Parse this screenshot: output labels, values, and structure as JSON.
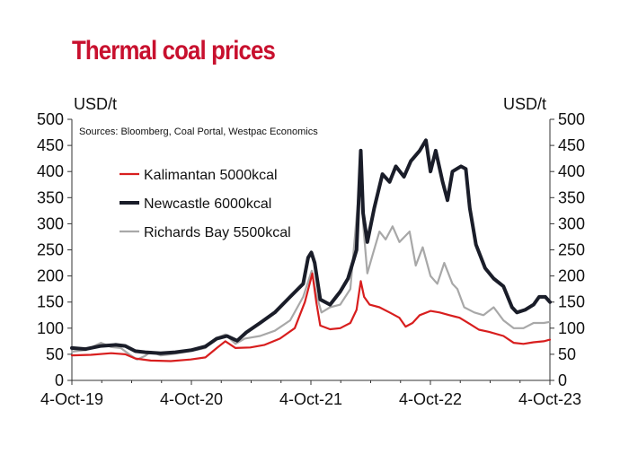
{
  "chart_data": {
    "type": "line",
    "title": "Thermal coal prices",
    "ylabel_left": "USD/t",
    "ylabel_right": "USD/t",
    "source": "Sources: Bloomberg, Coal Portal, Westpac Economics",
    "ylim": [
      0,
      500
    ],
    "yticks": [
      0,
      50,
      100,
      150,
      200,
      250,
      300,
      350,
      400,
      450,
      500
    ],
    "xlim": [
      "2019-10-04",
      "2023-10-04"
    ],
    "xticks": [
      "4-Oct-19",
      "4-Oct-20",
      "4-Oct-21",
      "4-Oct-22",
      "4-Oct-23"
    ],
    "grid": false,
    "legend": "upper-left",
    "series": [
      {
        "name": "Kalimantan 5000kcal",
        "color": "#d81e1e",
        "width": 2.2,
        "points": [
          [
            "2019-10-04",
            48
          ],
          [
            "2019-12-01",
            49
          ],
          [
            "2020-02-01",
            52
          ],
          [
            "2020-03-15",
            50
          ],
          [
            "2020-04-15",
            42
          ],
          [
            "2020-06-01",
            38
          ],
          [
            "2020-08-01",
            37
          ],
          [
            "2020-10-01",
            40
          ],
          [
            "2020-11-15",
            44
          ],
          [
            "2020-12-20",
            62
          ],
          [
            "2021-01-15",
            75
          ],
          [
            "2021-02-15",
            62
          ],
          [
            "2021-04-01",
            63
          ],
          [
            "2021-05-15",
            68
          ],
          [
            "2021-07-01",
            80
          ],
          [
            "2021-08-15",
            100
          ],
          [
            "2021-09-15",
            150
          ],
          [
            "2021-10-08",
            205
          ],
          [
            "2021-10-20",
            150
          ],
          [
            "2021-11-01",
            105
          ],
          [
            "2021-12-01",
            98
          ],
          [
            "2022-01-01",
            100
          ],
          [
            "2022-02-01",
            110
          ],
          [
            "2022-02-20",
            135
          ],
          [
            "2022-03-05",
            190
          ],
          [
            "2022-03-15",
            160
          ],
          [
            "2022-04-01",
            145
          ],
          [
            "2022-05-01",
            140
          ],
          [
            "2022-06-01",
            130
          ],
          [
            "2022-07-01",
            120
          ],
          [
            "2022-07-20",
            103
          ],
          [
            "2022-08-10",
            110
          ],
          [
            "2022-09-01",
            125
          ],
          [
            "2022-10-04",
            133
          ],
          [
            "2022-11-01",
            130
          ],
          [
            "2022-12-01",
            125
          ],
          [
            "2023-01-01",
            120
          ],
          [
            "2023-02-01",
            108
          ],
          [
            "2023-03-01",
            97
          ],
          [
            "2023-04-01",
            93
          ],
          [
            "2023-05-15",
            85
          ],
          [
            "2023-06-15",
            72
          ],
          [
            "2023-07-15",
            70
          ],
          [
            "2023-08-15",
            73
          ],
          [
            "2023-09-15",
            75
          ],
          [
            "2023-10-04",
            78
          ]
        ]
      },
      {
        "name": "Newcastle 6000kcal",
        "color": "#1a1d29",
        "width": 4,
        "points": [
          [
            "2019-10-04",
            62
          ],
          [
            "2019-11-15",
            60
          ],
          [
            "2020-01-01",
            66
          ],
          [
            "2020-02-15",
            68
          ],
          [
            "2020-03-15",
            66
          ],
          [
            "2020-04-15",
            56
          ],
          [
            "2020-05-15",
            54
          ],
          [
            "2020-07-01",
            52
          ],
          [
            "2020-08-15",
            54
          ],
          [
            "2020-10-04",
            58
          ],
          [
            "2020-11-15",
            65
          ],
          [
            "2020-12-20",
            80
          ],
          [
            "2021-01-20",
            85
          ],
          [
            "2021-02-20",
            76
          ],
          [
            "2021-03-20",
            92
          ],
          [
            "2021-05-01",
            110
          ],
          [
            "2021-06-15",
            130
          ],
          [
            "2021-08-01",
            160
          ],
          [
            "2021-09-10",
            185
          ],
          [
            "2021-09-25",
            235
          ],
          [
            "2021-10-05",
            245
          ],
          [
            "2021-10-15",
            225
          ],
          [
            "2021-11-01",
            155
          ],
          [
            "2021-12-01",
            145
          ],
          [
            "2022-01-01",
            170
          ],
          [
            "2022-01-25",
            195
          ],
          [
            "2022-02-20",
            250
          ],
          [
            "2022-03-05",
            440
          ],
          [
            "2022-03-12",
            320
          ],
          [
            "2022-03-25",
            265
          ],
          [
            "2022-04-15",
            330
          ],
          [
            "2022-05-10",
            395
          ],
          [
            "2022-06-01",
            380
          ],
          [
            "2022-06-20",
            410
          ],
          [
            "2022-07-15",
            390
          ],
          [
            "2022-08-05",
            420
          ],
          [
            "2022-09-01",
            440
          ],
          [
            "2022-09-20",
            460
          ],
          [
            "2022-10-04",
            400
          ],
          [
            "2022-10-20",
            440
          ],
          [
            "2022-11-10",
            380
          ],
          [
            "2022-11-25",
            345
          ],
          [
            "2022-12-10",
            400
          ],
          [
            "2023-01-05",
            410
          ],
          [
            "2023-01-20",
            405
          ],
          [
            "2023-02-01",
            330
          ],
          [
            "2023-02-20",
            260
          ],
          [
            "2023-03-20",
            215
          ],
          [
            "2023-04-15",
            195
          ],
          [
            "2023-05-15",
            180
          ],
          [
            "2023-06-10",
            140
          ],
          [
            "2023-06-25",
            130
          ],
          [
            "2023-07-20",
            135
          ],
          [
            "2023-08-15",
            145
          ],
          [
            "2023-09-01",
            160
          ],
          [
            "2023-09-20",
            160
          ],
          [
            "2023-10-04",
            150
          ]
        ]
      },
      {
        "name": "Richards Bay 5500kcal",
        "color": "#a8a8a8",
        "width": 2.2,
        "points": [
          [
            "2019-10-04",
            55
          ],
          [
            "2019-11-15",
            58
          ],
          [
            "2020-01-01",
            72
          ],
          [
            "2020-02-01",
            64
          ],
          [
            "2020-03-01",
            62
          ],
          [
            "2020-04-01",
            48
          ],
          [
            "2020-04-20",
            40
          ],
          [
            "2020-05-15",
            47
          ],
          [
            "2020-06-01",
            55
          ],
          [
            "2020-07-01",
            48
          ],
          [
            "2020-08-01",
            50
          ],
          [
            "2020-10-01",
            56
          ],
          [
            "2020-11-15",
            62
          ],
          [
            "2020-12-15",
            80
          ],
          [
            "2021-01-15",
            88
          ],
          [
            "2021-02-15",
            70
          ],
          [
            "2021-03-15",
            80
          ],
          [
            "2021-05-01",
            85
          ],
          [
            "2021-06-15",
            95
          ],
          [
            "2021-08-01",
            115
          ],
          [
            "2021-09-10",
            160
          ],
          [
            "2021-10-06",
            210
          ],
          [
            "2021-10-20",
            165
          ],
          [
            "2021-11-05",
            130
          ],
          [
            "2021-12-01",
            140
          ],
          [
            "2022-01-01",
            145
          ],
          [
            "2022-02-01",
            175
          ],
          [
            "2022-03-05",
            405
          ],
          [
            "2022-03-12",
            300
          ],
          [
            "2022-03-25",
            205
          ],
          [
            "2022-04-10",
            240
          ],
          [
            "2022-05-01",
            285
          ],
          [
            "2022-05-20",
            270
          ],
          [
            "2022-06-10",
            295
          ],
          [
            "2022-07-01",
            265
          ],
          [
            "2022-08-01",
            285
          ],
          [
            "2022-08-20",
            220
          ],
          [
            "2022-09-10",
            255
          ],
          [
            "2022-10-04",
            200
          ],
          [
            "2022-10-25",
            185
          ],
          [
            "2022-11-15",
            225
          ],
          [
            "2022-12-10",
            185
          ],
          [
            "2022-12-25",
            175
          ],
          [
            "2023-01-15",
            140
          ],
          [
            "2023-02-15",
            130
          ],
          [
            "2023-03-15",
            125
          ],
          [
            "2023-04-15",
            140
          ],
          [
            "2023-05-15",
            115
          ],
          [
            "2023-06-15",
            100
          ],
          [
            "2023-07-15",
            100
          ],
          [
            "2023-08-15",
            110
          ],
          [
            "2023-09-15",
            110
          ],
          [
            "2023-10-04",
            112
          ]
        ]
      }
    ]
  }
}
